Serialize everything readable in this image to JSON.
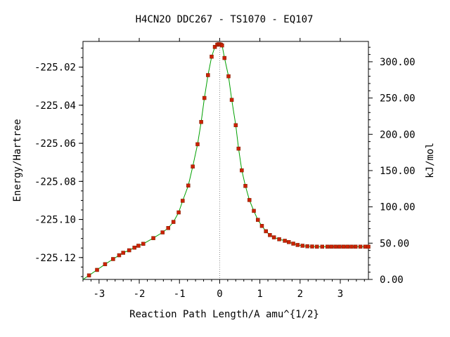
{
  "chart_data": {
    "type": "line",
    "title": "H4CN2O   DDC267 - TS1070 - EQ107",
    "xlabel": "Reaction Path Length/A amu^{1/2}",
    "ylabel_left": "Energy/Hartree",
    "ylabel_right": "kJ/mol",
    "xlim": [
      -3.4,
      3.7
    ],
    "ylim_left": [
      -225.1315,
      -225.0065
    ],
    "ylim_right": [
      0,
      328
    ],
    "x_ticks": [
      -3,
      -2,
      -1,
      0,
      1,
      2,
      3
    ],
    "x_tick_labels": [
      "-3",
      "-2",
      "-1",
      "0",
      "1",
      "2",
      "3"
    ],
    "y_left_ticks": [
      -225.02,
      -225.04,
      -225.06,
      -225.08,
      -225.1,
      -225.12
    ],
    "y_left_tick_labels": [
      "-225.02",
      "-225.04",
      "-225.06",
      "-225.08",
      "-225.10",
      "-225.12"
    ],
    "y_right_ticks": [
      0,
      50,
      100,
      150,
      200,
      250,
      300
    ],
    "y_right_tick_labels": [
      "0.00",
      "50.00",
      "100.00",
      "150.00",
      "200.00",
      "250.00",
      "300.00"
    ],
    "grid": false,
    "series": [
      {
        "color": "#00a000",
        "marker_color": "#cc2200",
        "x": [
          -3.4,
          -3.25,
          -3.05,
          -2.85,
          -2.65,
          -2.5,
          -2.4,
          -2.25,
          -2.12,
          -2.02,
          -1.9,
          -1.65,
          -1.42,
          -1.28,
          -1.15,
          -1.02,
          -0.92,
          -0.78,
          -0.67,
          -0.55,
          -0.46,
          -0.38,
          -0.29,
          -0.2,
          -0.12,
          -0.06,
          -0.03,
          0.0,
          0.03,
          0.06,
          0.12,
          0.22,
          0.3,
          0.4,
          0.47,
          0.55,
          0.64,
          0.74,
          0.85,
          0.95,
          1.05,
          1.15,
          1.25,
          1.35,
          1.48,
          1.62,
          1.72,
          1.83,
          1.94,
          2.06,
          2.18,
          2.3,
          2.42,
          2.55,
          2.68,
          2.78,
          2.88,
          2.98,
          3.08,
          3.18,
          3.28,
          3.38,
          3.5,
          3.62,
          3.7
        ],
        "y": [
          -225.1315,
          -225.1294,
          -225.1265,
          -225.1235,
          -225.1208,
          -225.1188,
          -225.1175,
          -225.1162,
          -225.1148,
          -225.1138,
          -225.1128,
          -225.1098,
          -225.1068,
          -225.1045,
          -225.1013,
          -225.0963,
          -225.0902,
          -225.0822,
          -225.0722,
          -225.0605,
          -225.0488,
          -225.0362,
          -225.0242,
          -225.0145,
          -225.0094,
          -225.0082,
          -225.008,
          -225.008,
          -225.0082,
          -225.0086,
          -225.0152,
          -225.0248,
          -225.0372,
          -225.0505,
          -225.0628,
          -225.0742,
          -225.0824,
          -225.0898,
          -225.0955,
          -225.1002,
          -225.1034,
          -225.1062,
          -225.1082,
          -225.1094,
          -225.1104,
          -225.1112,
          -225.1119,
          -225.1127,
          -225.1134,
          -225.1138,
          -225.1141,
          -225.1142,
          -225.1143,
          -225.1143,
          -225.1143,
          -225.1143,
          -225.1143,
          -225.1143,
          -225.1143,
          -225.1143,
          -225.1143,
          -225.1143,
          -225.1143,
          -225.1143,
          -225.1143
        ],
        "markers_x": [
          -3.25,
          -3.05,
          -2.85,
          -2.65,
          -2.5,
          -2.4,
          -2.25,
          -2.12,
          -2.02,
          -1.9,
          -1.65,
          -1.42,
          -1.28,
          -1.15,
          -1.02,
          -0.92,
          -0.78,
          -0.67,
          -0.55,
          -0.46,
          -0.38,
          -0.29,
          -0.2,
          -0.12,
          -0.06,
          -0.03,
          0.0,
          0.03,
          0.06,
          0.12,
          0.22,
          0.3,
          0.4,
          0.47,
          0.55,
          0.64,
          0.74,
          0.85,
          0.95,
          1.05,
          1.15,
          1.25,
          1.35,
          1.48,
          1.62,
          1.72,
          1.83,
          1.94,
          2.06,
          2.18,
          2.3,
          2.42,
          2.55,
          2.68,
          2.78,
          2.88,
          2.98,
          3.08,
          3.18,
          3.28,
          3.38,
          3.5,
          3.62,
          3.7
        ]
      }
    ],
    "annotations": [
      {
        "type": "vertical_dotted_line",
        "x": 0.0
      }
    ]
  }
}
